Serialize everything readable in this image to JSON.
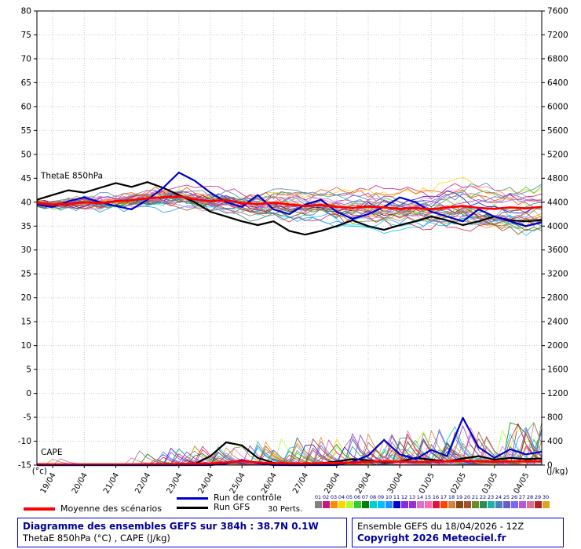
{
  "legend": {
    "mean_label": "Moyenne des scénarios",
    "control_label": "Run de contrôle",
    "gfs_label": "Run GFS",
    "perts_label": "30 Perts.",
    "pert_numbers": [
      "01",
      "02",
      "03",
      "04",
      "05",
      "06",
      "07",
      "08",
      "09",
      "10",
      "11",
      "12",
      "13",
      "14",
      "15",
      "16",
      "17",
      "18",
      "19",
      "20",
      "21",
      "22",
      "23",
      "24",
      "25",
      "26",
      "27",
      "28",
      "29",
      "30"
    ],
    "pert_colors": [
      "#808080",
      "#c71585",
      "#ff8c00",
      "#ffd700",
      "#adff2f",
      "#32cd32",
      "#008000",
      "#00ced1",
      "#00bfff",
      "#1e90ff",
      "#0000cd",
      "#8a2be2",
      "#9932cc",
      "#da70d6",
      "#ff69b4",
      "#dc143c",
      "#ff4500",
      "#cd853f",
      "#8b4513",
      "#a0522d",
      "#6b8e23",
      "#2e8b57",
      "#20b2aa",
      "#4682b4",
      "#6a5acd",
      "#7b68ee",
      "#ba55d3",
      "#d87093",
      "#b22222",
      "#daa520"
    ]
  },
  "footer": {
    "left": {
      "line1": "Diagramme des ensembles GEFS sur 384h : 38.7N 0.1W",
      "line2": "ThetaE 850hPa (°C) , CAPE (J/kg)"
    },
    "right": {
      "line1": "Ensemble GEFS du 18/04/2026 - 12Z",
      "line2": "Copyright 2026 Meteociel.fr"
    }
  },
  "chart_data": {
    "type": "line",
    "x_hours": 384,
    "x_step_hours": 12,
    "x_day_labels": [
      "19/04",
      "20/04",
      "21/04",
      "22/04",
      "23/04",
      "24/04",
      "25/04",
      "26/04",
      "27/04",
      "28/04",
      "29/04",
      "30/04",
      "01/05",
      "02/05",
      "03/05",
      "04/05"
    ],
    "left_axis": {
      "unit": "(°c)",
      "min": -15,
      "max": 80,
      "ticks": [
        80,
        75,
        70,
        65,
        60,
        55,
        50,
        45,
        40,
        35,
        30,
        25,
        20,
        15,
        10,
        5,
        0,
        -5,
        -10,
        -15
      ]
    },
    "right_axis": {
      "unit": "(J/kg)",
      "min": 0,
      "max": 7600,
      "ticks": [
        7600,
        7200,
        6800,
        6400,
        6000,
        5600,
        5200,
        4800,
        4400,
        4000,
        3600,
        3200,
        2800,
        2400,
        2000,
        1600,
        1200,
        800,
        400,
        0
      ]
    },
    "annotations": {
      "theta_label": "ThetaE 850hPa",
      "cape_label": "CAPE"
    },
    "series": {
      "theta_mean": {
        "name": "Moyenne des scénarios ThetaE",
        "color": "#ff0000",
        "values": [
          39.8,
          39.5,
          39.6,
          40.0,
          39.8,
          40.2,
          40.4,
          40.8,
          41.0,
          41.2,
          40.6,
          40.2,
          40.4,
          39.8,
          39.6,
          39.9,
          39.5,
          39.2,
          39.4,
          39.0,
          38.8,
          39.1,
          38.9,
          38.6,
          38.8,
          38.5,
          38.9,
          39.2,
          38.8,
          38.6,
          38.9,
          38.7,
          39.0
        ]
      },
      "theta_control": {
        "name": "Run de contrôle ThetaE",
        "color": "#0000cc",
        "values": [
          39.5,
          39.0,
          40.2,
          41.0,
          40.0,
          39.2,
          38.5,
          40.5,
          43.0,
          46.2,
          44.5,
          42.0,
          40.0,
          39.0,
          41.5,
          38.5,
          37.5,
          39.5,
          40.5,
          38.0,
          36.5,
          37.5,
          39.0,
          41.0,
          40.0,
          38.0,
          37.0,
          36.0,
          38.5,
          37.0,
          36.0,
          35.0,
          35.8
        ]
      },
      "theta_gfs": {
        "name": "Run GFS ThetaE",
        "color": "#000000",
        "values": [
          40.5,
          41.5,
          42.5,
          42.0,
          43.0,
          44.0,
          43.2,
          44.2,
          43.0,
          41.5,
          40.0,
          38.0,
          37.0,
          36.0,
          35.2,
          36.0,
          34.0,
          33.2,
          34.0,
          35.0,
          36.2,
          35.0,
          34.2,
          35.2,
          36.0,
          37.0,
          36.2,
          35.2,
          36.0,
          37.0,
          36.2,
          36.0,
          36.2
        ]
      },
      "cape_mean": {
        "name": "Moyenne des scénarios CAPE",
        "color": "#ff0000",
        "values": [
          15,
          12,
          12,
          12,
          12,
          12,
          12,
          14,
          16,
          18,
          22,
          28,
          45,
          65,
          45,
          32,
          28,
          26,
          32,
          36,
          42,
          52,
          62,
          58,
          52,
          56,
          62,
          72,
          62,
          56,
          60,
          62,
          62
        ]
      },
      "cape_control": {
        "name": "Run de contrôle CAPE",
        "color": "#0000cc",
        "values": [
          0,
          0,
          0,
          0,
          0,
          0,
          0,
          0,
          0,
          0,
          0,
          0,
          25,
          85,
          30,
          0,
          0,
          0,
          0,
          0,
          55,
          160,
          420,
          180,
          100,
          255,
          150,
          790,
          300,
          120,
          265,
          180,
          225
        ]
      },
      "cape_gfs": {
        "name": "Run GFS CAPE",
        "color": "#000000",
        "values": [
          0,
          0,
          0,
          0,
          0,
          0,
          0,
          0,
          0,
          0,
          20,
          150,
          380,
          330,
          120,
          40,
          0,
          0,
          30,
          60,
          100,
          80,
          40,
          60,
          120,
          90,
          60,
          110,
          150,
          90,
          120,
          100,
          110
        ]
      }
    },
    "ensemble": {
      "count": 30,
      "theta_seed": 1234,
      "cape_seed": 999,
      "colors": [
        "#808080",
        "#c71585",
        "#ff8c00",
        "#ffd700",
        "#adff2f",
        "#32cd32",
        "#008000",
        "#00ced1",
        "#00bfff",
        "#1e90ff",
        "#0000cd",
        "#8a2be2",
        "#9932cc",
        "#da70d6",
        "#ff69b4",
        "#dc143c",
        "#ff4500",
        "#cd853f",
        "#8b4513",
        "#a0522d",
        "#6b8e23",
        "#2e8b57",
        "#20b2aa",
        "#4682b4",
        "#6a5acd",
        "#7b68ee",
        "#ba55d3",
        "#d87093",
        "#b22222",
        "#daa520"
      ]
    }
  }
}
